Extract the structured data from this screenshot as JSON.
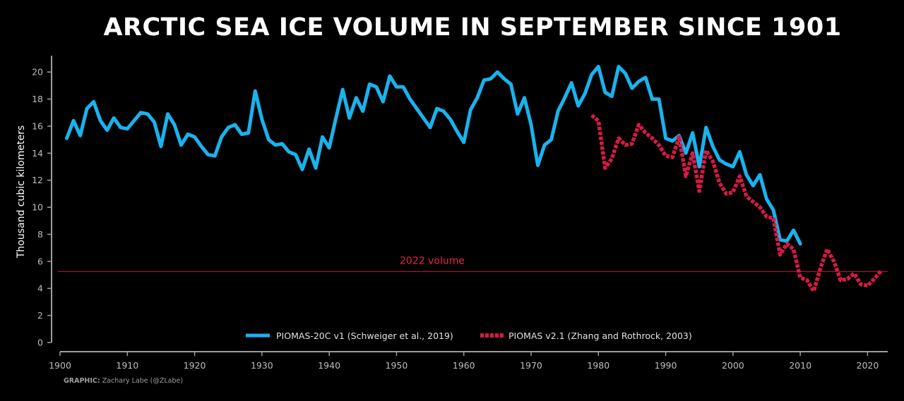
{
  "colors": {
    "background": "#000000",
    "series_blue": "#19b3ee",
    "series_red": "#d61a45",
    "reference_line": "#9b1b34",
    "annotation": "#e6244f",
    "axis": "#9e9e9e",
    "tick_text": "#bdbdbd"
  },
  "chart_data": {
    "type": "line",
    "title": "ARCTIC SEA ICE VOLUME IN SEPTEMBER SINCE 1901",
    "xlabel": "",
    "ylabel": "Thousand cubic kilometers",
    "xlim": [
      1900,
      2023
    ],
    "ylim": [
      0,
      21
    ],
    "x_ticks": [
      1900,
      1910,
      1920,
      1930,
      1940,
      1950,
      1960,
      1970,
      1980,
      1990,
      2000,
      2010,
      2020
    ],
    "y_ticks": [
      0,
      2,
      4,
      6,
      8,
      10,
      12,
      14,
      16,
      18,
      20
    ],
    "grid": false,
    "legend_position": "bottom-center",
    "reference_line": {
      "y": 5.25,
      "label": "2022 volume"
    },
    "series": [
      {
        "name": "PIOMAS-20C v1 (Schweiger et al., 2019)",
        "style": "solid",
        "x": [
          1901,
          1902,
          1903,
          1904,
          1905,
          1906,
          1907,
          1908,
          1909,
          1910,
          1911,
          1912,
          1913,
          1914,
          1915,
          1916,
          1917,
          1918,
          1919,
          1920,
          1921,
          1922,
          1923,
          1924,
          1925,
          1926,
          1927,
          1928,
          1929,
          1930,
          1931,
          1932,
          1933,
          1934,
          1935,
          1936,
          1937,
          1938,
          1939,
          1940,
          1941,
          1942,
          1943,
          1944,
          1945,
          1946,
          1947,
          1948,
          1949,
          1950,
          1951,
          1952,
          1953,
          1954,
          1955,
          1956,
          1957,
          1958,
          1959,
          1960,
          1961,
          1962,
          1963,
          1964,
          1965,
          1966,
          1967,
          1968,
          1969,
          1970,
          1971,
          1972,
          1973,
          1974,
          1975,
          1976,
          1977,
          1978,
          1979,
          1980,
          1981,
          1982,
          1983,
          1984,
          1985,
          1986,
          1987,
          1988,
          1989,
          1990,
          1991,
          1992,
          1993,
          1994,
          1995,
          1996,
          1997,
          1998,
          1999,
          2000,
          2001,
          2002,
          2003,
          2004,
          2005,
          2006,
          2007,
          2008,
          2009,
          2010
        ],
        "values": [
          15.1,
          16.4,
          15.3,
          17.3,
          17.8,
          16.4,
          15.7,
          16.6,
          15.9,
          15.8,
          16.4,
          17.0,
          16.9,
          16.3,
          14.5,
          16.9,
          16.1,
          14.6,
          15.4,
          15.2,
          14.5,
          13.9,
          13.8,
          15.2,
          15.9,
          16.1,
          15.4,
          15.5,
          18.6,
          16.5,
          15.0,
          14.6,
          14.7,
          14.1,
          13.9,
          12.8,
          14.3,
          12.9,
          15.2,
          14.4,
          16.6,
          18.7,
          16.6,
          18.1,
          17.1,
          19.1,
          18.9,
          17.8,
          19.7,
          18.9,
          18.9,
          18.0,
          17.3,
          16.6,
          15.9,
          17.3,
          17.1,
          16.5,
          15.6,
          14.8,
          17.2,
          18.1,
          19.4,
          19.5,
          20.0,
          19.5,
          19.1,
          16.9,
          18.1,
          16.1,
          13.1,
          14.6,
          15.0,
          17.1,
          18.1,
          19.2,
          17.5,
          18.4,
          19.8,
          20.4,
          18.5,
          18.2,
          20.4,
          19.9,
          18.8,
          19.3,
          19.6,
          18.0,
          18.0,
          15.1,
          14.9,
          15.3,
          14.0,
          15.5,
          13.0,
          15.9,
          14.5,
          13.5,
          13.2,
          13.0,
          14.1,
          12.4,
          11.6,
          12.4,
          10.6,
          9.8,
          7.6,
          7.5,
          8.3,
          7.3
        ]
      },
      {
        "name": "PIOMAS v2.1 (Zhang and Rothrock, 2003)",
        "style": "dashed",
        "x": [
          1979,
          1980,
          1981,
          1982,
          1983,
          1984,
          1985,
          1986,
          1987,
          1988,
          1989,
          1990,
          1991,
          1992,
          1993,
          1994,
          1995,
          1996,
          1997,
          1998,
          1999,
          2000,
          2001,
          2002,
          2003,
          2004,
          2005,
          2006,
          2007,
          2008,
          2009,
          2010,
          2011,
          2012,
          2013,
          2014,
          2015,
          2016,
          2017,
          2018,
          2019,
          2020,
          2021,
          2022
        ],
        "values": [
          16.8,
          16.4,
          12.9,
          13.6,
          15.1,
          14.6,
          14.7,
          16.1,
          15.5,
          15.1,
          14.6,
          13.8,
          13.7,
          15.2,
          12.3,
          14.0,
          11.2,
          14.2,
          13.4,
          11.8,
          11.0,
          11.1,
          12.3,
          10.8,
          10.4,
          10.0,
          9.3,
          9.2,
          6.5,
          7.3,
          6.9,
          4.8,
          4.6,
          3.8,
          5.5,
          6.9,
          6.0,
          4.6,
          4.7,
          5.1,
          4.3,
          4.2,
          4.7,
          5.3
        ]
      }
    ]
  },
  "credit": {
    "label": "GRAPHIC:",
    "text": "Zachary Labe (@ZLabe)"
  }
}
